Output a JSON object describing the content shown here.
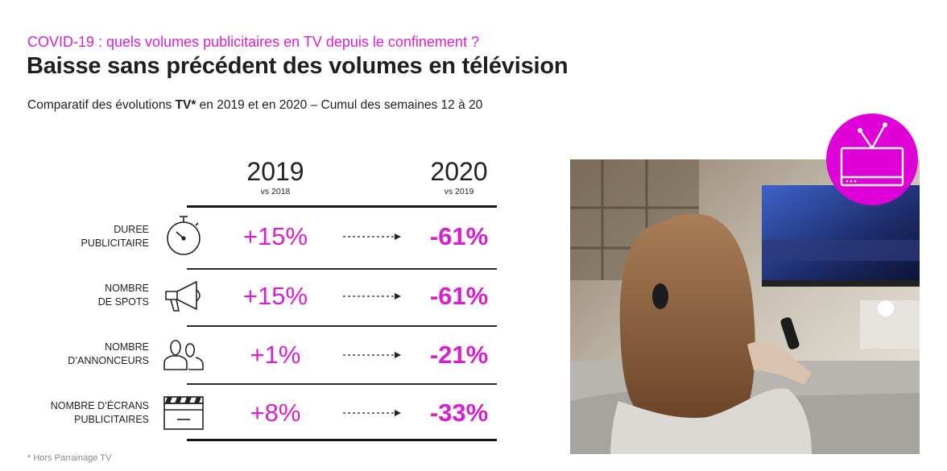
{
  "header": {
    "kicker": "COVID-19 : quels volumes publicitaires en TV depuis le confinement ?",
    "title": "Baisse sans précédent des volumes en télévision",
    "subtitle_pre": "Comparatif des évolutions ",
    "subtitle_bold": "TV*",
    "subtitle_post": " en 2019 et en 2020 – Cumul des semaines 12 à 20"
  },
  "columns": {
    "y2019": {
      "year": "2019",
      "sub": "vs 2018"
    },
    "y2020": {
      "year": "2020",
      "sub": "vs 2019"
    }
  },
  "rows": [
    {
      "line1": "DUREE",
      "line2": "PUBLICITAIRE",
      "icon": "stopwatch-icon",
      "v2019": "+15%",
      "v2020": "-61%"
    },
    {
      "line1": "NOMBRE",
      "line2": "DE SPOTS",
      "icon": "megaphone-icon",
      "v2019": "+15%",
      "v2020": "-61%"
    },
    {
      "line1": "NOMBRE",
      "line2": "D’ANNONCEURS",
      "icon": "users-icon",
      "v2019": "+1%",
      "v2020": "-21%"
    },
    {
      "line1": "NOMBRE D’ÉCRANS",
      "line2": "PUBLICITAIRES",
      "icon": "clapperboard-icon",
      "v2019": "+8%",
      "v2020": "-33%"
    }
  ],
  "footnote": "* Hors Parrainage TV",
  "colors": {
    "accent": "#d81fd0",
    "badge": "#e000d8",
    "text": "#1f1f1f"
  },
  "image": {
    "icon": "tv-icon"
  }
}
